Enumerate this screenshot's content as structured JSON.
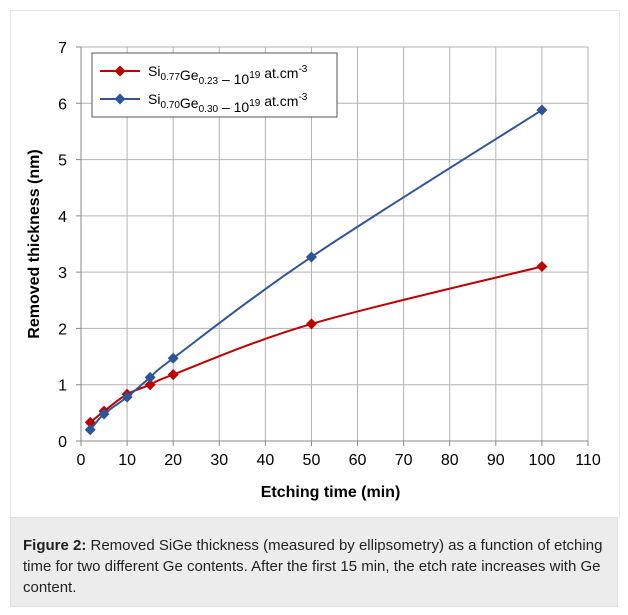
{
  "chart_data": {
    "type": "line",
    "xlabel": "Etching time (min)",
    "ylabel": "Removed thickness (nm)",
    "xlim": [
      0,
      110
    ],
    "ylim": [
      0,
      7
    ],
    "xticks": [
      "0",
      "10",
      "20",
      "30",
      "40",
      "50",
      "60",
      "70",
      "80",
      "90",
      "100",
      "110"
    ],
    "yticks": [
      "0",
      "1",
      "2",
      "3",
      "4",
      "5",
      "6",
      "7"
    ],
    "grid": true,
    "legend_position": "top-left",
    "series": [
      {
        "name": "Si0.77Ge0.23 – 10^19 at.cm^-3",
        "legend": {
          "el1": "Si",
          "sub1": "0.77",
          "el2": "Ge",
          "sub2": "0.23",
          "mid": " – 10",
          "sup1": "19",
          "unit": " at.cm",
          "sup2": "-3"
        },
        "color": "#c00000",
        "marker": "diamond",
        "x": [
          2,
          5,
          10,
          15,
          20,
          50,
          100
        ],
        "y": [
          0.33,
          0.53,
          0.83,
          1.0,
          1.18,
          2.08,
          3.1
        ]
      },
      {
        "name": "Si0.70Ge0.30 – 10^19 at.cm^-3",
        "legend": {
          "el1": "Si",
          "sub1": "0.70",
          "el2": "Ge",
          "sub2": "0.30",
          "mid": " – 10",
          "sup1": "19",
          "unit": " at.cm",
          "sup2": "-3"
        },
        "color": "#2e5597",
        "marker": "diamond",
        "x": [
          2,
          5,
          10,
          15,
          20,
          50,
          100
        ],
        "y": [
          0.2,
          0.48,
          0.78,
          1.13,
          1.47,
          3.27,
          5.88
        ]
      }
    ]
  },
  "caption": {
    "label": "Figure 2:",
    "text": " Removed SiGe thickness (measured by ellipsometry) as a function of etching time for two different Ge contents. After the first 15 min, the etch rate increases with Ge content."
  }
}
